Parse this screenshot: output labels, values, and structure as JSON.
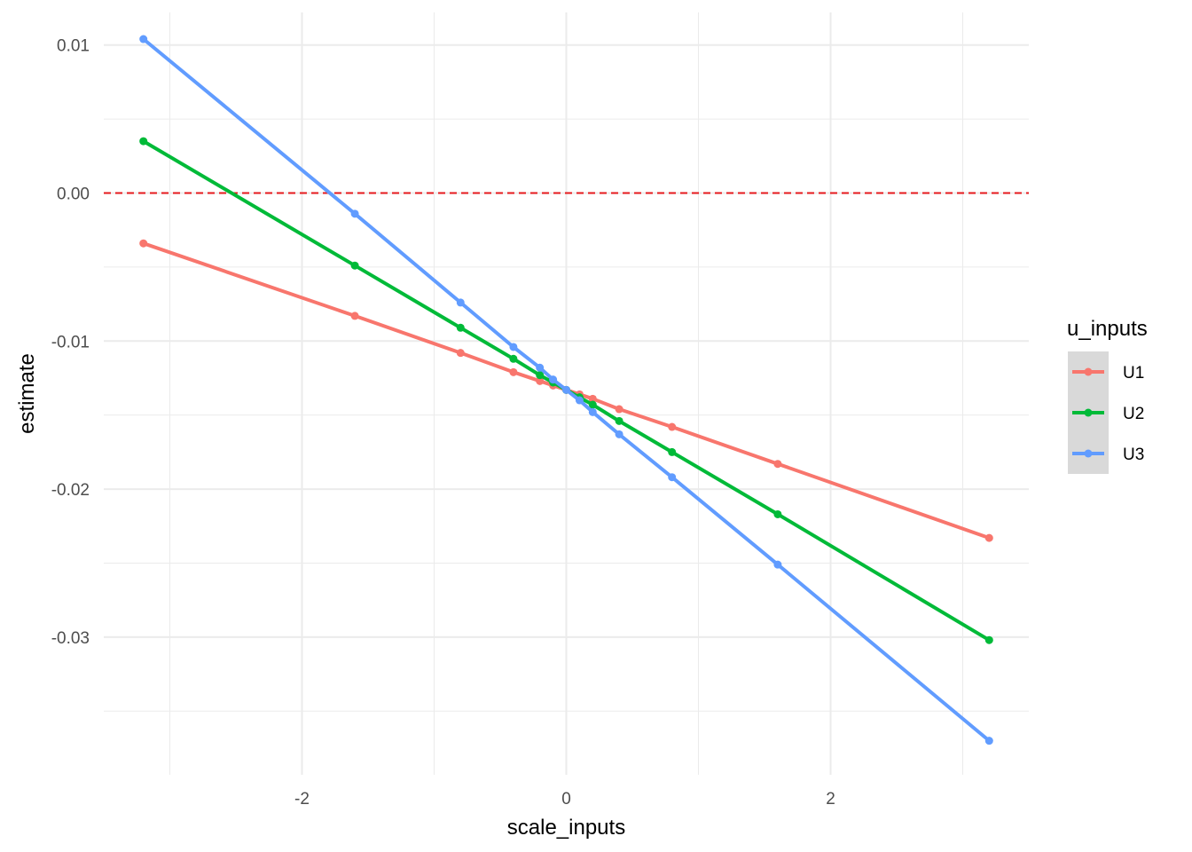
{
  "chart_data": {
    "type": "line",
    "xlabel": "scale_inputs",
    "ylabel": "estimate",
    "xlim": [
      -3.5,
      3.5
    ],
    "ylim": [
      -0.0393,
      0.0122
    ],
    "x_ticks": [
      -2,
      0,
      2
    ],
    "x_tick_labels": [
      "-2",
      "0",
      "2"
    ],
    "y_ticks": [
      0.01,
      0.0,
      -0.01,
      -0.02,
      -0.03
    ],
    "y_tick_labels": [
      "0.01",
      "0.00",
      "-0.01",
      "-0.02",
      "-0.03"
    ],
    "grid": true,
    "reference_line": {
      "y": 0.0,
      "style": "dashed",
      "color": "#e41a1c"
    },
    "legend": {
      "title": "u_inputs",
      "position": "right"
    },
    "x": [
      -3.2,
      -1.6,
      -0.8,
      -0.4,
      -0.2,
      -0.1,
      0.0,
      0.1,
      0.2,
      0.4,
      0.8,
      1.6,
      3.2
    ],
    "series": [
      {
        "name": "U1",
        "color": "#F8766D",
        "values": [
          -0.0034,
          -0.0083,
          -0.0108,
          -0.0121,
          -0.0127,
          -0.013,
          -0.0133,
          -0.0136,
          -0.0139,
          -0.0146,
          -0.0158,
          -0.0183,
          -0.0233
        ]
      },
      {
        "name": "U2",
        "color": "#00BA38",
        "values": [
          0.0035,
          -0.0049,
          -0.0091,
          -0.0112,
          -0.0123,
          -0.0128,
          -0.0133,
          -0.0138,
          -0.0143,
          -0.0154,
          -0.0175,
          -0.0217,
          -0.0302
        ]
      },
      {
        "name": "U3",
        "color": "#619CFF",
        "values": [
          0.0104,
          -0.0014,
          -0.0074,
          -0.0104,
          -0.0118,
          -0.0126,
          -0.0133,
          -0.014,
          -0.0148,
          -0.0163,
          -0.0192,
          -0.0251,
          -0.037
        ]
      }
    ]
  }
}
